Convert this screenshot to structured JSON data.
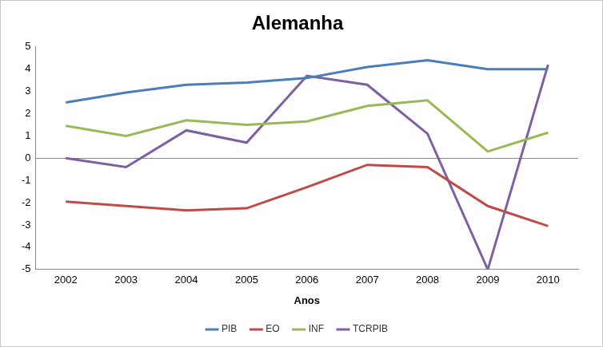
{
  "chart_data": {
    "type": "line",
    "title": "Alemanha",
    "x_label": "Anos",
    "categories": [
      "2002",
      "2003",
      "2004",
      "2005",
      "2006",
      "2007",
      "2008",
      "2009",
      "2010"
    ],
    "series": [
      {
        "name": "PIB",
        "color": "#4a7ebb",
        "values": [
          2.5,
          2.95,
          3.3,
          3.4,
          3.6,
          4.1,
          4.4,
          4.0,
          4.0
        ]
      },
      {
        "name": "EO",
        "color": "#be4b48",
        "values": [
          -1.95,
          -2.15,
          -2.35,
          -2.25,
          -1.3,
          -0.3,
          -0.4,
          -2.15,
          -3.05
        ]
      },
      {
        "name": "INF",
        "color": "#98b954",
        "values": [
          1.45,
          1.0,
          1.7,
          1.5,
          1.65,
          2.35,
          2.6,
          0.3,
          1.15
        ]
      },
      {
        "name": "TCRPIB",
        "color": "#7d60a0",
        "values": [
          0.0,
          -0.4,
          1.25,
          0.7,
          3.7,
          3.3,
          1.1,
          -5.0,
          4.2
        ]
      }
    ],
    "ylim": [
      -5,
      5
    ],
    "yticks": [
      -5,
      -4,
      -3,
      -2,
      -1,
      0,
      1,
      2,
      3,
      4,
      5
    ],
    "grid": false,
    "legend": "bottom"
  }
}
